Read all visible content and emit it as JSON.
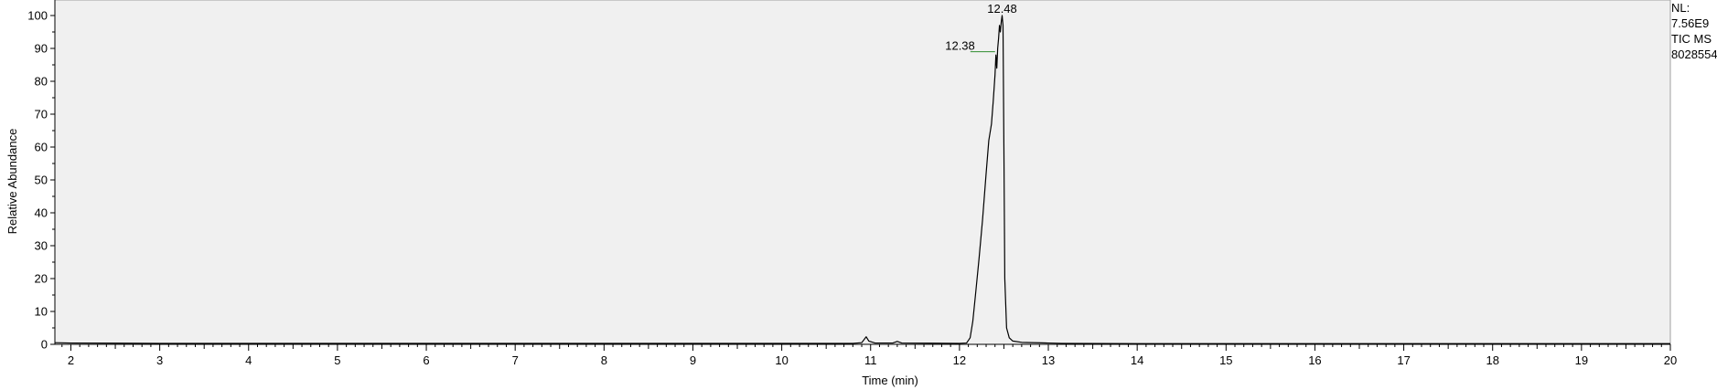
{
  "chart_data": {
    "type": "line",
    "xlabel": "Time (min)",
    "ylabel": "Relative Abundance",
    "xlim": [
      1.82,
      20
    ],
    "ylim": [
      0,
      100
    ],
    "x_ticks": [
      2,
      3,
      4,
      5,
      6,
      7,
      8,
      9,
      10,
      11,
      12,
      13,
      14,
      15,
      16,
      17,
      18,
      19,
      20
    ],
    "y_ticks": [
      0,
      10,
      20,
      30,
      40,
      50,
      60,
      70,
      80,
      90,
      100
    ],
    "grid": false,
    "series": [
      {
        "points": [
          [
            1.82,
            0.5
          ],
          [
            2.0,
            0.4
          ],
          [
            3.0,
            0.3
          ],
          [
            5.0,
            0.3
          ],
          [
            7.0,
            0.3
          ],
          [
            9.0,
            0.3
          ],
          [
            10.0,
            0.3
          ],
          [
            10.8,
            0.3
          ],
          [
            10.9,
            0.5
          ],
          [
            10.95,
            2.3
          ],
          [
            10.98,
            1.0
          ],
          [
            11.05,
            0.4
          ],
          [
            11.25,
            0.4
          ],
          [
            11.3,
            0.9
          ],
          [
            11.35,
            0.4
          ],
          [
            12.0,
            0.3
          ],
          [
            12.08,
            0.4
          ],
          [
            12.12,
            2.0
          ],
          [
            12.15,
            7.0
          ],
          [
            12.18,
            15.0
          ],
          [
            12.22,
            26.0
          ],
          [
            12.26,
            38.0
          ],
          [
            12.3,
            52.0
          ],
          [
            12.33,
            62.0
          ],
          [
            12.36,
            67.0
          ],
          [
            12.38,
            74.0
          ],
          [
            12.4,
            82.0
          ],
          [
            12.41,
            88.0
          ],
          [
            12.42,
            84.0
          ],
          [
            12.43,
            90.0
          ],
          [
            12.44,
            93.0
          ],
          [
            12.45,
            97.0
          ],
          [
            12.46,
            95.0
          ],
          [
            12.47,
            98.0
          ],
          [
            12.48,
            100.0
          ],
          [
            12.49,
            97.0
          ],
          [
            12.5,
            60.0
          ],
          [
            12.51,
            20.0
          ],
          [
            12.53,
            5.0
          ],
          [
            12.56,
            2.0
          ],
          [
            12.6,
            1.0
          ],
          [
            12.7,
            0.6
          ],
          [
            13.0,
            0.4
          ],
          [
            13.15,
            0.3
          ],
          [
            14.0,
            0.2
          ],
          [
            20.0,
            0.2
          ]
        ]
      }
    ],
    "peak_labels": [
      {
        "x": 12.48,
        "y": 100,
        "text": "12.48"
      },
      {
        "x": 12.38,
        "y": 89,
        "text": "12.38"
      }
    ]
  },
  "side_info": {
    "lines": [
      "NL:",
      "7.56E9",
      "TIC  MS",
      "8028554"
    ]
  },
  "colors": {
    "plot_background": "#f0f0f0",
    "trace": "#000000",
    "peak_marker": "#2e8b2e"
  }
}
